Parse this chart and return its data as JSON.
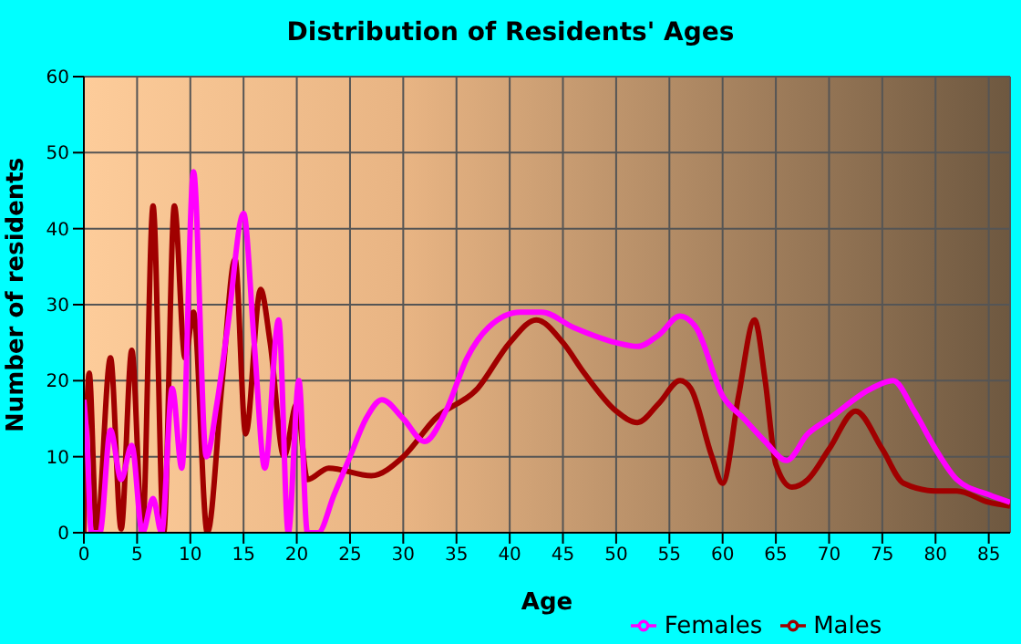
{
  "chart_data": {
    "type": "line",
    "title": "Distribution of Residents' Ages",
    "xlabel": "Age",
    "ylabel": "Number of residents",
    "xlim": [
      0,
      87
    ],
    "xticks": [
      0,
      5,
      10,
      15,
      20,
      25,
      30,
      35,
      40,
      45,
      50,
      55,
      60,
      65,
      70,
      75,
      80,
      85
    ],
    "ylim": [
      0,
      60
    ],
    "yticks": [
      0,
      10,
      20,
      30,
      40,
      50,
      60
    ],
    "grid": true,
    "legend": "bottom",
    "marker": "none",
    "line_style": "solid",
    "series": [
      {
        "name": "Males",
        "color": "#a00000",
        "x": [
          0,
          0.5,
          1.2,
          2.5,
          3.5,
          4.5,
          5.5,
          6.5,
          7.5,
          8.5,
          9.5,
          10.3,
          11.6,
          13,
          14.2,
          15.2,
          16.6,
          17.5,
          18.8,
          20,
          21,
          23,
          27,
          30,
          33,
          37,
          40,
          42.5,
          45,
          47,
          50,
          52,
          54,
          56,
          57,
          59,
          60,
          61.5,
          63,
          64,
          65,
          66.5,
          68,
          70,
          72.5,
          75,
          77,
          80,
          82,
          85,
          87
        ],
        "values": [
          0,
          21,
          0,
          23,
          0.5,
          24,
          0,
          43,
          0,
          43,
          23,
          29,
          0,
          20,
          36,
          13,
          32,
          25,
          10,
          17,
          7,
          8.5,
          7.5,
          10,
          15,
          19,
          25,
          28,
          25,
          21,
          16,
          14.5,
          17,
          20,
          19,
          10,
          6.5,
          18,
          28,
          20,
          9,
          6,
          7,
          11,
          16,
          11,
          6.5,
          5.5,
          5.5,
          4,
          3.5
        ]
      },
      {
        "name": "Females",
        "color": "#ff00ff",
        "x": [
          0,
          0.3,
          0.7,
          1.5,
          2.5,
          3.5,
          4.5,
          5.5,
          6.5,
          7.3,
          8.3,
          9.2,
          10.3,
          11.5,
          12.5,
          13.5,
          15,
          16,
          17,
          18.3,
          19.2,
          20.2,
          21,
          22,
          23.5,
          25,
          26.5,
          28,
          30,
          32,
          34,
          36,
          38,
          41,
          43,
          46,
          50,
          52,
          54,
          56,
          57.5,
          60,
          62,
          64,
          66,
          68,
          70,
          74,
          76,
          78,
          80,
          82,
          85,
          87
        ],
        "values": [
          17.5,
          12,
          0,
          0,
          13.5,
          7,
          11.5,
          0,
          4.5,
          0,
          19,
          8.5,
          47.5,
          10,
          17,
          27,
          42,
          25,
          8.5,
          28,
          0,
          20,
          0,
          0,
          5,
          10,
          15,
          17.5,
          15,
          12,
          16,
          23,
          27,
          29,
          29,
          27,
          25,
          24.5,
          26,
          28.5,
          27,
          18,
          15,
          12,
          9.5,
          13,
          15,
          19,
          20,
          16,
          11,
          7,
          5,
          4
        ]
      }
    ]
  }
}
